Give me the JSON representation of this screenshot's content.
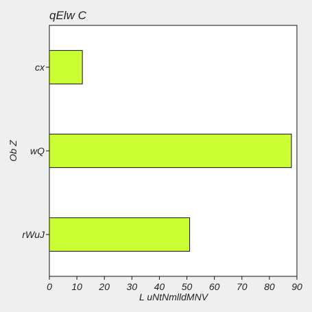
{
  "chart_data": {
    "type": "bar",
    "orientation": "horizontal",
    "title": "qElw C",
    "xlabel": "L uNtNmlldMNV",
    "ylabel": "Ob Z",
    "categories": [
      "rWuJ",
      "wQ",
      "cx"
    ],
    "values": [
      51,
      88,
      12
    ],
    "xlim": [
      0,
      90
    ],
    "xticks": [
      "0",
      "10",
      "20",
      "30",
      "40",
      "50",
      "60",
      "70",
      "80",
      "90"
    ],
    "grid": false,
    "bar_color": "#ccff33",
    "bar_edge_color": "#111111",
    "background_color": "#ffffff",
    "figure_color": "#efefef"
  }
}
